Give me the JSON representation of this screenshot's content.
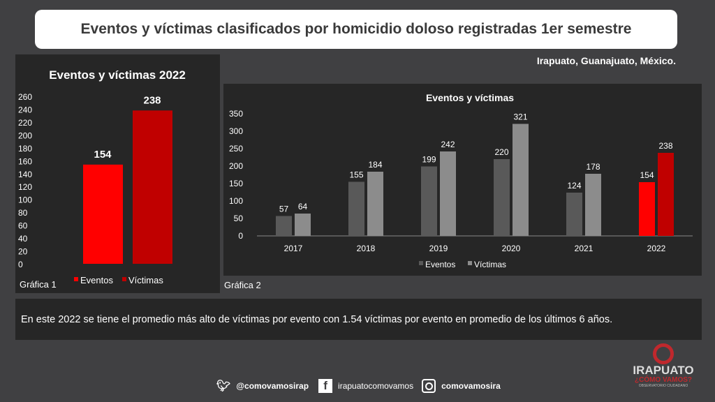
{
  "title": "Eventos y víctimas clasificados por homicidio doloso registradas 1er semestre",
  "location": "Irapuato, Guanajuato, México.",
  "colors": {
    "eventos": "#595959",
    "victimas": "#8c8c8c",
    "eventos_2022": "#ff0000",
    "victimas_2022": "#c00000"
  },
  "chart_data": [
    {
      "type": "bar",
      "title": "Eventos y víctimas 2022",
      "caption": "Gráfica 1",
      "categories": [
        "2022"
      ],
      "series": [
        {
          "name": "Eventos",
          "values": [
            154
          ]
        },
        {
          "name": "Víctimas",
          "values": [
            238
          ]
        }
      ],
      "yticks": [
        0,
        20,
        40,
        60,
        80,
        100,
        120,
        140,
        160,
        180,
        200,
        220,
        240,
        260
      ],
      "ylim": [
        0,
        260
      ],
      "legend": "bottom"
    },
    {
      "type": "bar",
      "title": "Eventos y víctimas",
      "caption": "Gráfica 2",
      "categories": [
        "2017",
        "2018",
        "2019",
        "2020",
        "2021",
        "2022"
      ],
      "series": [
        {
          "name": "Eventos",
          "values": [
            57,
            155,
            199,
            220,
            124,
            154
          ]
        },
        {
          "name": "Víctimas",
          "values": [
            64,
            184,
            242,
            321,
            178,
            238
          ]
        }
      ],
      "yticks": [
        0,
        50,
        100,
        150,
        200,
        250,
        300,
        350
      ],
      "ylim": [
        0,
        350
      ],
      "legend": "bottom"
    }
  ],
  "note": "En este 2022 se tiene el promedio más alto de víctimas por evento con 1.54 víctimas por evento en promedio de los últimos 6 años.",
  "footer": {
    "twitter": "@comovamosirap",
    "facebook": "irapuatocomovamos",
    "instagram": "comovamosira"
  },
  "logo": {
    "name": "IRAPUATO",
    "tagline": "¿CÓMO VAMOS?",
    "sub": "OBSERVATORIO CIUDADANO"
  }
}
